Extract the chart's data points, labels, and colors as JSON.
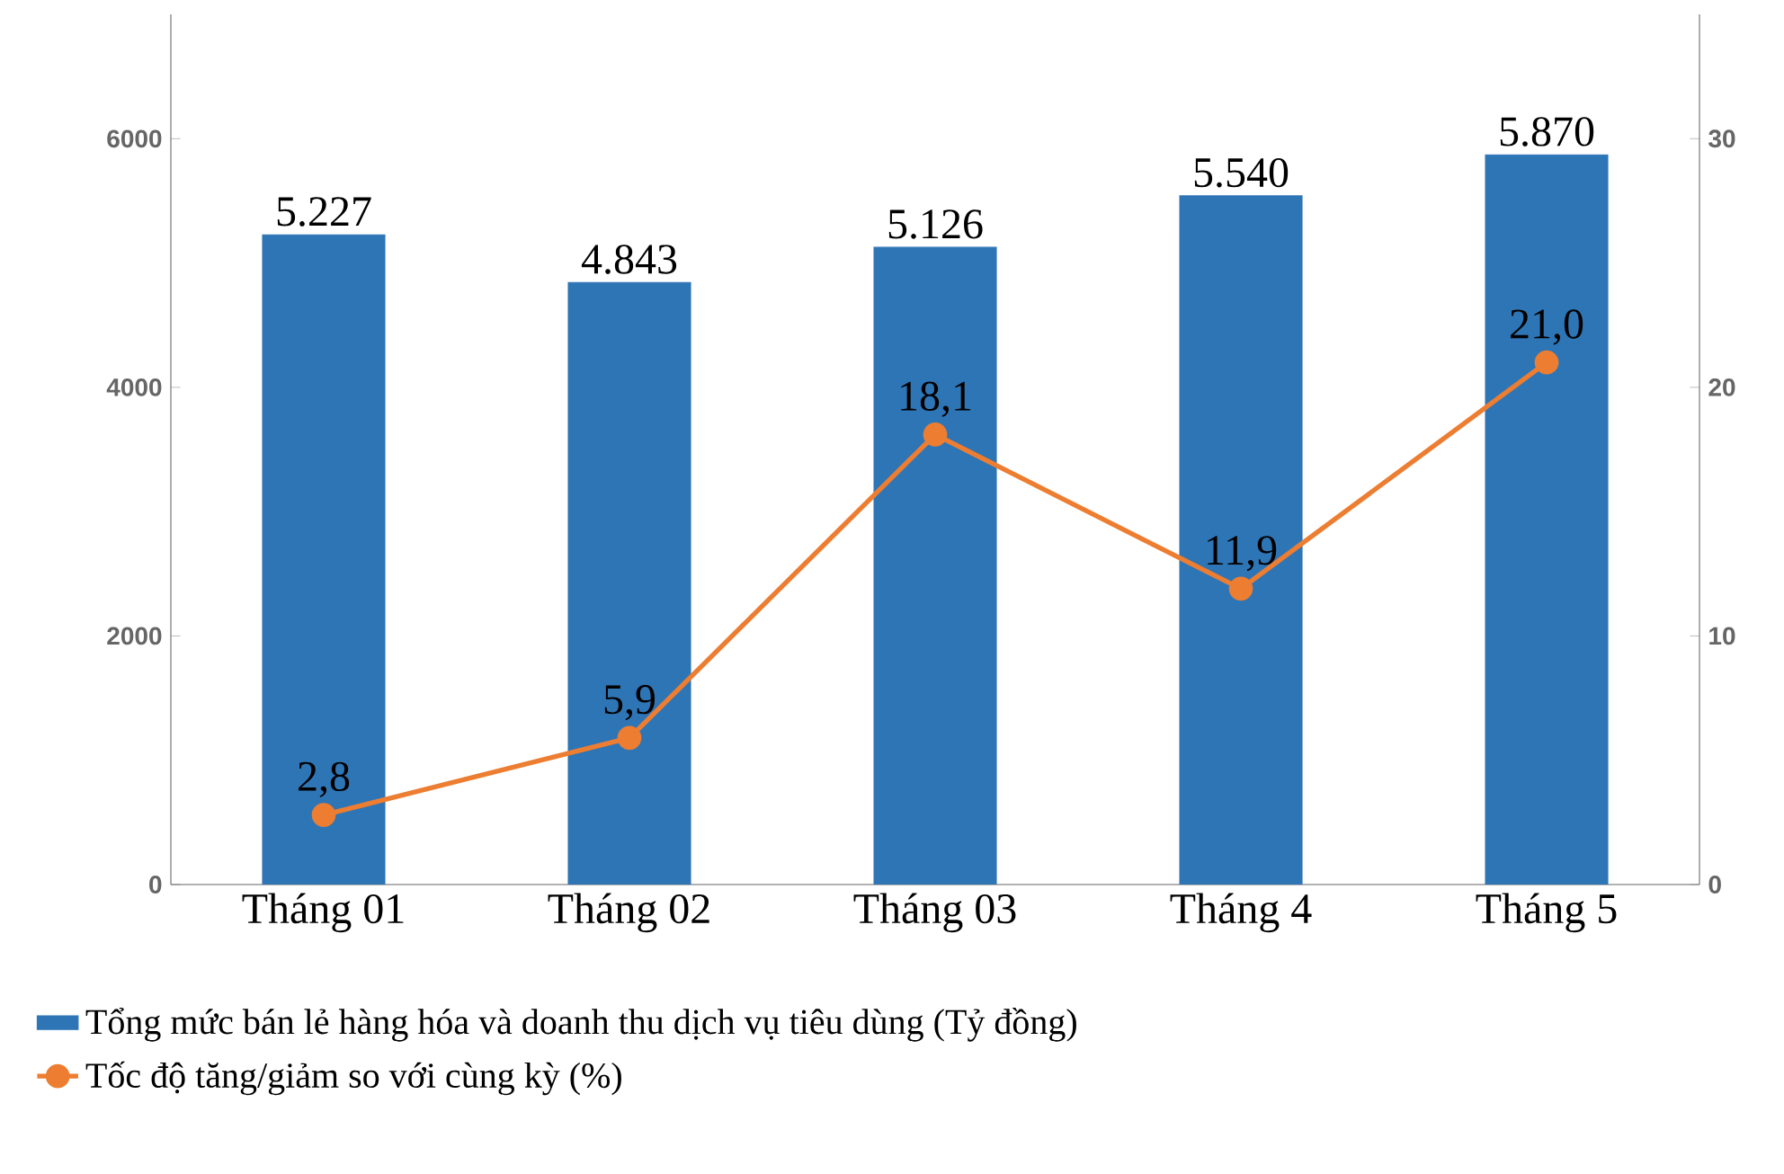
{
  "chart_data": {
    "type": "bar",
    "categories": [
      "Tháng 01",
      "Tháng 02",
      "Tháng 03",
      "Tháng 4",
      "Tháng 5"
    ],
    "series": [
      {
        "name": "Tổng mức bán lẻ hàng hóa và doanh thu dịch vụ tiêu dùng (Tỷ đồng)",
        "color": "#2e75b6",
        "values": [
          5227,
          4843,
          5126,
          5540,
          5870
        ],
        "value_labels": [
          "5.227",
          "4.843",
          "5.126",
          "5.540",
          "5.870"
        ]
      },
      {
        "name": "Tốc độ tăng/giảm so với cùng kỳ (%)",
        "type": "line",
        "axis": "y2",
        "color": "#ed7d31",
        "marker": "circle",
        "line_style": "solid",
        "values": [
          2.8,
          5.9,
          18.1,
          11.9,
          21.0
        ],
        "value_labels": [
          "2,8",
          "5,9",
          "18,1",
          "11,9",
          "21,0"
        ]
      }
    ],
    "ylim": [
      0,
      7000
    ],
    "yticks": [
      0,
      2000,
      4000,
      6000
    ],
    "y2lim": [
      0,
      35
    ],
    "y2ticks": [
      0,
      10,
      20,
      30
    ],
    "grid": false,
    "legend": "bottom"
  }
}
